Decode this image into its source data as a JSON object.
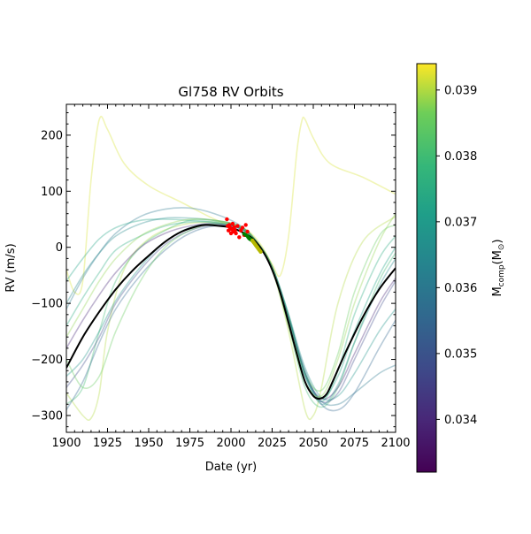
{
  "chart_data": {
    "type": "line",
    "title": "Gl758 RV Orbits",
    "xlabel": "Date (yr)",
    "ylabel": "RV (m/s)",
    "xlim": [
      1900,
      2100
    ],
    "ylim": [
      -330,
      255
    ],
    "x_ticks": [
      1900,
      1925,
      1950,
      1975,
      2000,
      2025,
      2050,
      2075,
      2100
    ],
    "y_ticks": [
      -300,
      -200,
      -100,
      0,
      100,
      200
    ],
    "x_tick_labels": [
      "1900",
      "1925",
      "1950",
      "1975",
      "2000",
      "2025",
      "2050",
      "2075",
      "2100"
    ],
    "y_tick_labels": [
      "−300",
      "−200",
      "−100",
      "0",
      "100",
      "200"
    ],
    "grid": false,
    "colorbar": {
      "label": "M_comp(M⊙)",
      "label_main": "M",
      "label_sub": "comp",
      "label_paren": "(M",
      "label_odot": "⊙",
      "label_close": ")",
      "colormap": "viridis",
      "range": [
        0.0332,
        0.0394
      ],
      "ticks": [
        0.034,
        0.035,
        0.036,
        0.037,
        0.038,
        0.039
      ],
      "tick_labels": [
        "0.034",
        "0.035",
        "0.036",
        "0.037",
        "0.038",
        "0.039"
      ]
    },
    "best_fit": {
      "color": "#000000",
      "x": [
        1900,
        1910,
        1920,
        1930,
        1940,
        1950,
        1960,
        1970,
        1980,
        1985,
        1990,
        2000,
        2010,
        2015,
        2020,
        2025,
        2030,
        2035,
        2040,
        2045,
        2050,
        2054,
        2058,
        2062,
        2070,
        2080,
        2090,
        2100
      ],
      "y": [
        -215,
        -160,
        -115,
        -75,
        -42,
        -15,
        10,
        28,
        38,
        40,
        39,
        35,
        22,
        10,
        -10,
        -40,
        -82,
        -135,
        -190,
        -240,
        -265,
        -270,
        -262,
        -238,
        -185,
        -125,
        -75,
        -37
      ]
    },
    "model_orbits": [
      {
        "mass": 0.0392,
        "color_alpha": 0.35,
        "x": [
          1900,
          1905,
          1910,
          1915,
          1920,
          1925,
          1935,
          1950,
          1970,
          1990,
          2000,
          2010,
          2018,
          2025,
          2030,
          2035,
          2040,
          2043,
          2045,
          2050,
          2060,
          2080,
          2100
        ],
        "y": [
          -40,
          -80,
          -60,
          120,
          228,
          210,
          150,
          110,
          80,
          50,
          40,
          30,
          5,
          -30,
          -50,
          20,
          170,
          225,
          228,
          195,
          150,
          125,
          95
        ]
      },
      {
        "mass": 0.039,
        "color_alpha": 0.35,
        "x": [
          1900,
          1910,
          1915,
          1920,
          1925,
          1935,
          1950,
          1970,
          1990,
          2005,
          2015,
          2025,
          2035,
          2045,
          2050,
          2055,
          2065,
          2080,
          2100
        ],
        "y": [
          -260,
          -300,
          -305,
          -260,
          -150,
          -40,
          15,
          40,
          45,
          38,
          12,
          -40,
          -150,
          -290,
          -300,
          -250,
          -100,
          10,
          55
        ]
      },
      {
        "mass": 0.0375,
        "color_alpha": 0.35,
        "x": [
          1900,
          1910,
          1920,
          1930,
          1945,
          1960,
          1975,
          1990,
          2005,
          2015,
          2025,
          2035,
          2045,
          2055,
          2065,
          2075,
          2090,
          2100
        ],
        "y": [
          -140,
          -90,
          -45,
          -5,
          20,
          38,
          45,
          44,
          35,
          12,
          -35,
          -120,
          -230,
          -275,
          -220,
          -120,
          -20,
          20
        ]
      },
      {
        "mass": 0.038,
        "color_alpha": 0.35,
        "x": [
          1900,
          1910,
          1920,
          1930,
          1945,
          1960,
          1975,
          1990,
          2005,
          2015,
          2025,
          2035,
          2045,
          2055,
          2065,
          2075,
          2090,
          2100
        ],
        "y": [
          -280,
          -250,
          -150,
          -60,
          0,
          30,
          48,
          48,
          38,
          12,
          -38,
          -140,
          -250,
          -285,
          -250,
          -170,
          -60,
          -10
        ]
      },
      {
        "mass": 0.0368,
        "color_alpha": 0.35,
        "x": [
          1900,
          1910,
          1920,
          1930,
          1945,
          1960,
          1975,
          1990,
          2005,
          2015,
          2025,
          2035,
          2045,
          2055,
          2065,
          2075,
          2090,
          2100
        ],
        "y": [
          -230,
          -200,
          -150,
          -95,
          -35,
          10,
          35,
          42,
          34,
          12,
          -35,
          -120,
          -215,
          -268,
          -265,
          -225,
          -150,
          -110
        ]
      },
      {
        "mass": 0.036,
        "color_alpha": 0.35,
        "x": [
          1900,
          1910,
          1920,
          1930,
          1945,
          1960,
          1975,
          1990,
          2005,
          2015,
          2025,
          2035,
          2045,
          2055,
          2065,
          2075,
          2090,
          2100
        ],
        "y": [
          -110,
          -55,
          -10,
          25,
          55,
          68,
          70,
          60,
          40,
          12,
          -38,
          -130,
          -230,
          -275,
          -280,
          -260,
          -225,
          -210
        ]
      },
      {
        "mass": 0.0355,
        "color_alpha": 0.35,
        "x": [
          1900,
          1910,
          1920,
          1930,
          1945,
          1960,
          1975,
          1990,
          2005,
          2015,
          2025,
          2035,
          2045,
          2055,
          2065,
          2075,
          2090,
          2100
        ],
        "y": [
          -290,
          -240,
          -170,
          -110,
          -50,
          -5,
          25,
          38,
          34,
          12,
          -35,
          -125,
          -220,
          -280,
          -290,
          -260,
          -180,
          -130
        ]
      },
      {
        "mass": 0.0348,
        "color_alpha": 0.35,
        "x": [
          1900,
          1910,
          1920,
          1930,
          1945,
          1960,
          1975,
          1990,
          2005,
          2015,
          2025,
          2035,
          2045,
          2055,
          2065,
          2075,
          2090,
          2100
        ],
        "y": [
          -250,
          -210,
          -160,
          -100,
          -40,
          5,
          30,
          40,
          35,
          12,
          -35,
          -125,
          -225,
          -275,
          -260,
          -200,
          -110,
          -60
        ]
      },
      {
        "mass": 0.034,
        "color_alpha": 0.35,
        "x": [
          1900,
          1910,
          1920,
          1930,
          1945,
          1960,
          1975,
          1990,
          2005,
          2015,
          2025,
          2035,
          2045,
          2055,
          2065,
          2075,
          2090,
          2100
        ],
        "y": [
          -180,
          -130,
          -85,
          -45,
          0,
          25,
          38,
          42,
          35,
          12,
          -35,
          -125,
          -225,
          -270,
          -250,
          -190,
          -100,
          -55
        ]
      },
      {
        "mass": 0.0372,
        "color_alpha": 0.35,
        "x": [
          1900,
          1910,
          1920,
          1930,
          1945,
          1960,
          1975,
          1990,
          2005,
          2015,
          2025,
          2035,
          2045,
          2055,
          2065,
          2075,
          2090,
          2100
        ],
        "y": [
          -60,
          -20,
          15,
          35,
          48,
          50,
          48,
          45,
          36,
          12,
          -35,
          -125,
          -225,
          -270,
          -230,
          -150,
          -50,
          0
        ]
      },
      {
        "mass": 0.0385,
        "color_alpha": 0.35,
        "x": [
          1900,
          1910,
          1920,
          1930,
          1945,
          1960,
          1975,
          1990,
          2005,
          2015,
          2025,
          2035,
          2045,
          2055,
          2065,
          2075,
          2090,
          2100
        ],
        "y": [
          -200,
          -250,
          -230,
          -150,
          -60,
          0,
          30,
          42,
          36,
          12,
          -35,
          -125,
          -225,
          -255,
          -190,
          -80,
          20,
          40
        ]
      },
      {
        "mass": 0.0365,
        "color_alpha": 0.35,
        "x": [
          1900,
          1910,
          1920,
          1930,
          1945,
          1960,
          1975,
          1990,
          2005,
          2015,
          2025,
          2035,
          2045,
          2055,
          2065,
          2075,
          2090,
          2100
        ],
        "y": [
          -100,
          -50,
          -10,
          20,
          42,
          52,
          52,
          48,
          38,
          12,
          -35,
          -125,
          -225,
          -280,
          -245,
          -170,
          -70,
          -20
        ]
      },
      {
        "mass": 0.0388,
        "color_alpha": 0.35,
        "x": [
          1900,
          1910,
          1920,
          1930,
          1945,
          1960,
          1975,
          1990,
          2005,
          2015,
          2025,
          2035,
          2045,
          2055,
          2065,
          2075,
          2090,
          2100
        ],
        "y": [
          -160,
          -110,
          -60,
          -20,
          20,
          40,
          50,
          48,
          38,
          12,
          -35,
          -140,
          -240,
          -265,
          -200,
          -100,
          10,
          60
        ]
      }
    ],
    "data_points": [
      {
        "label": "red",
        "color": "#ff0000",
        "x": [
          1997.5,
          1998,
          1998.5,
          1999,
          1999.5,
          2000,
          2000.5,
          2001,
          2001.5,
          2002,
          2002.5,
          2003,
          2004,
          2005,
          2006,
          2007,
          2008,
          2009,
          2010
        ],
        "y": [
          50,
          38,
          30,
          40,
          35,
          25,
          32,
          42,
          28,
          36,
          30,
          25,
          38,
          18,
          30,
          35,
          22,
          40,
          28
        ]
      },
      {
        "label": "green",
        "color": "#008000",
        "x": [
          2008,
          2009,
          2010,
          2010.5,
          2011,
          2011.5,
          2012,
          2012.5,
          2013
        ],
        "y": [
          24,
          22,
          20,
          18,
          16,
          15,
          14,
          13,
          12
        ]
      },
      {
        "label": "yellow",
        "color": "#b5b800",
        "x": [
          2013,
          2013.5,
          2014,
          2014.5,
          2015,
          2015.5,
          2016,
          2016.5,
          2017,
          2017.5,
          2018
        ],
        "y": [
          12,
          10,
          8,
          6,
          4,
          2,
          0,
          -2,
          -4,
          -6,
          -8
        ]
      }
    ]
  }
}
